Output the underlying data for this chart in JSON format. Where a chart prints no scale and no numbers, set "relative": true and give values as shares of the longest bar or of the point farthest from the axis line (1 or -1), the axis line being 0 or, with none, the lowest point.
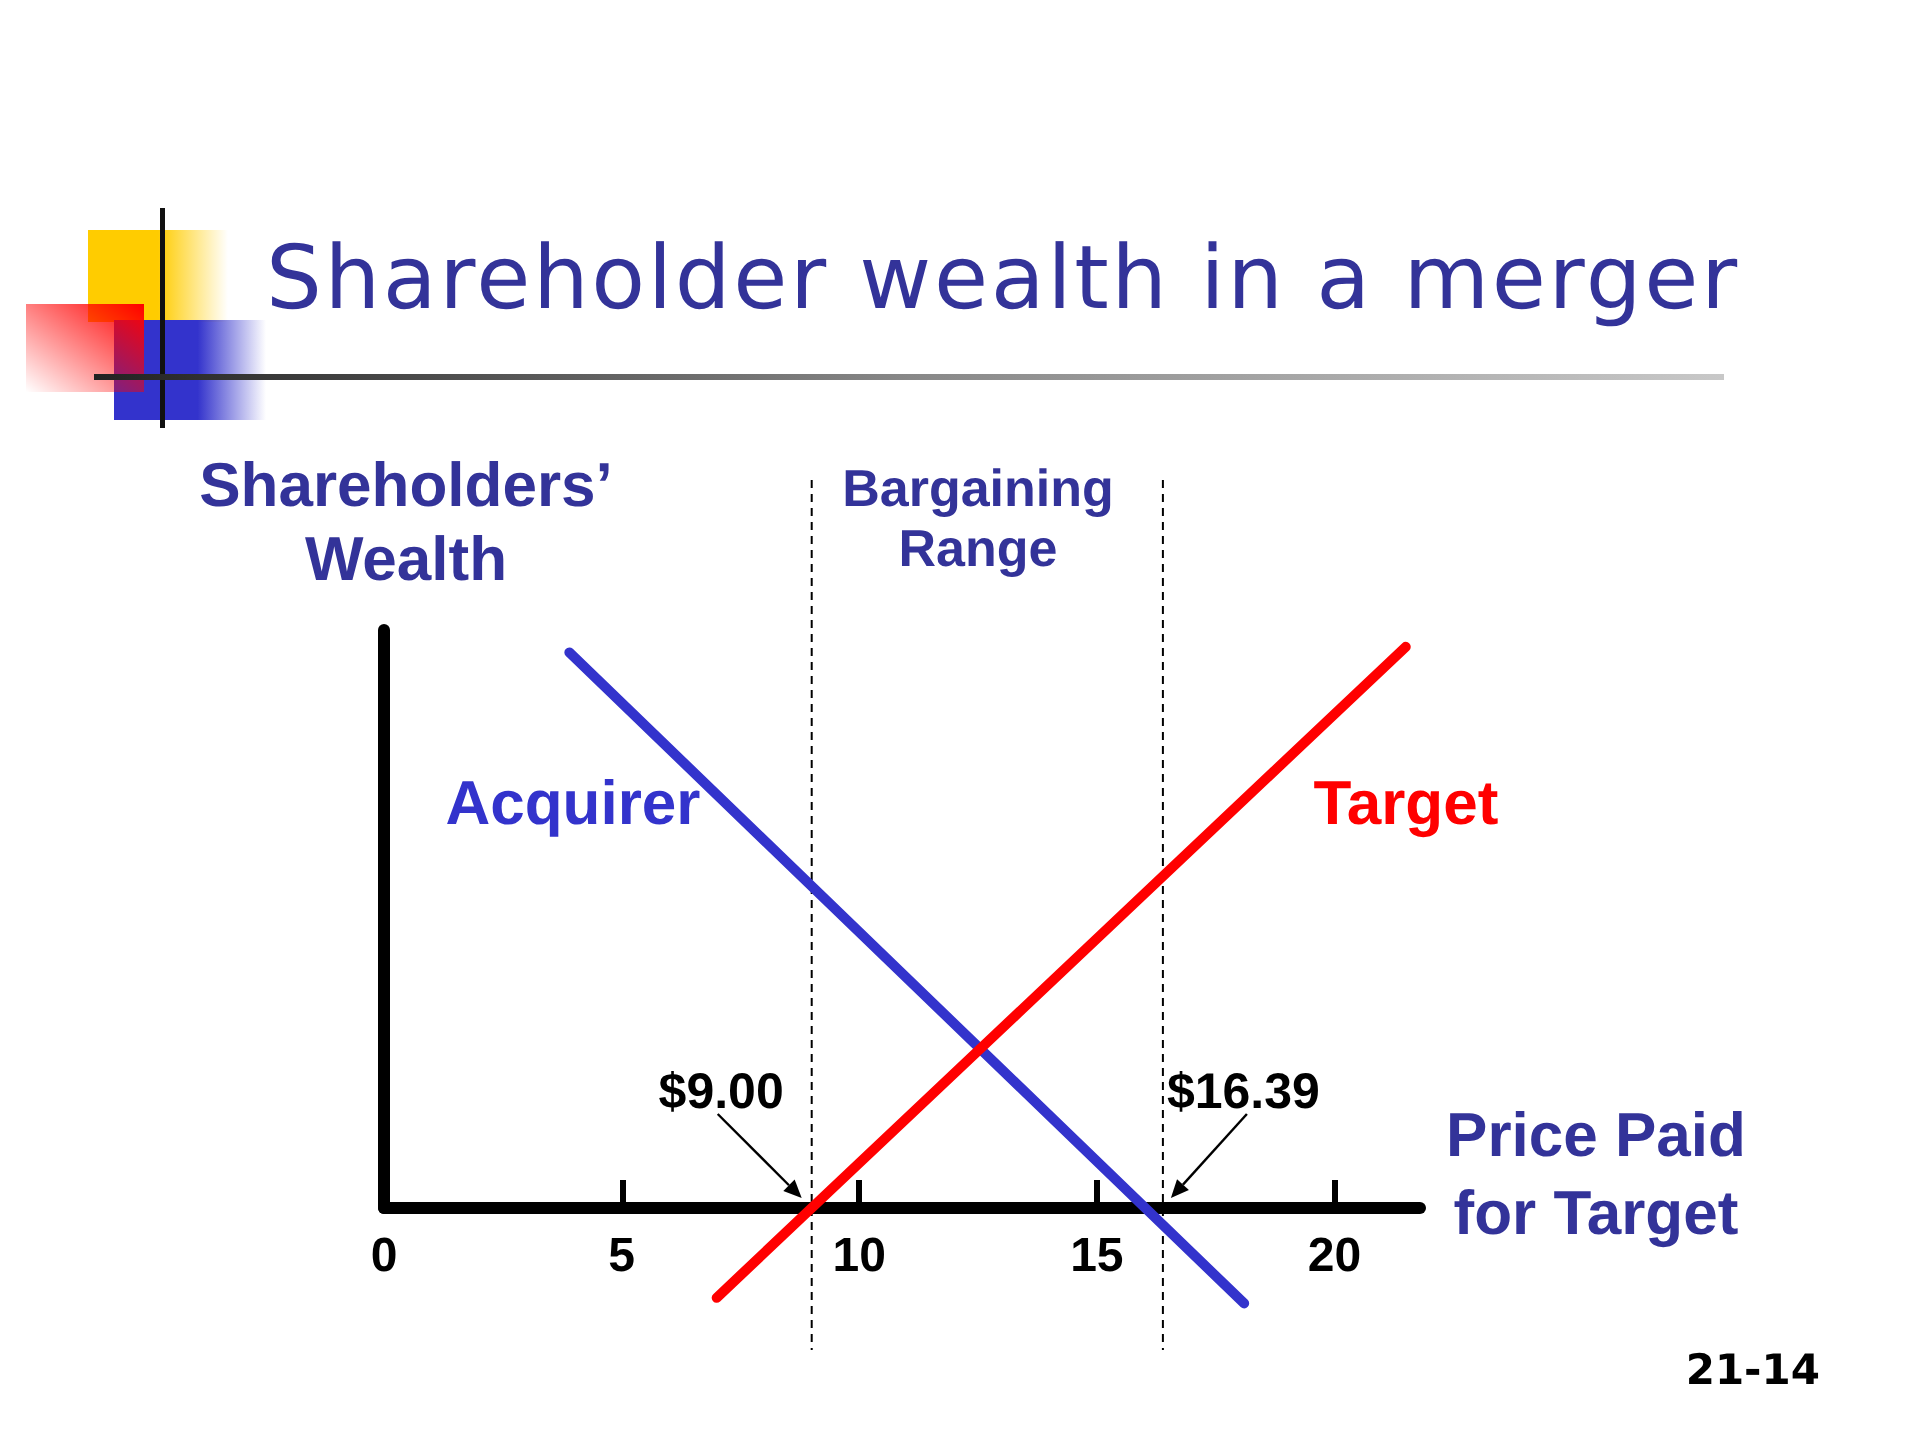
{
  "chart_data": {
    "type": "line",
    "title": "Shareholder wealth in a merger",
    "xlabel": "Price Paid for Target",
    "ylabel": "Shareholders’ Wealth",
    "relative": true,
    "series": [
      {
        "name": "Acquirer",
        "color": "#3333cc",
        "x": [
          3.9,
          18.1
        ],
        "values": [
          0.99,
          -0.17
        ]
      },
      {
        "name": "Target",
        "color": "#ff0000",
        "x": [
          7.0,
          21.5
        ],
        "values": [
          -0.16,
          1
        ]
      }
    ],
    "xlim": [
      0,
      21.8
    ],
    "xticks": [
      0,
      5,
      10,
      15,
      20
    ],
    "ref_lines": [
      {
        "axis": "x",
        "value": 9,
        "label": "$9.00",
        "color": "#000000",
        "line_style": "dashed"
      },
      {
        "axis": "x",
        "value": 16.39,
        "label": "$16.39",
        "color": "#000000",
        "line_style": "dashed"
      }
    ],
    "annotations": [
      "Bargaining Range",
      "21-14"
    ],
    "grid": false,
    "legend": false,
    "marker": "none",
    "line_style": "solid"
  }
}
